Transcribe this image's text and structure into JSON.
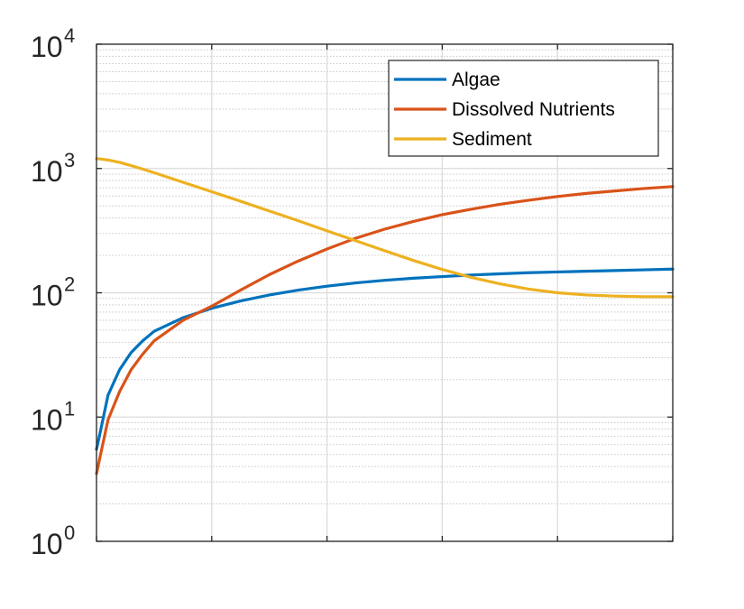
{
  "chart_data": {
    "type": "line",
    "title": "",
    "xlabel": "",
    "ylabel": "",
    "yscale": "log",
    "xlim": [
      0,
      10
    ],
    "ylim": [
      1,
      10000
    ],
    "x_ticks": [
      0,
      2,
      4,
      6,
      8,
      10
    ],
    "y_ticks": [
      {
        "base": "10",
        "exp": "0"
      },
      {
        "base": "10",
        "exp": "1"
      },
      {
        "base": "10",
        "exp": "2"
      },
      {
        "base": "10",
        "exp": "3"
      },
      {
        "base": "10",
        "exp": "4"
      }
    ],
    "grid": true,
    "minor_grid": true,
    "legend_position": "top-right",
    "x": [
      0,
      0.05,
      0.2,
      0.4,
      0.6,
      0.8,
      1,
      1.5,
      2,
      2.5,
      3,
      3.5,
      4,
      4.5,
      5,
      5.5,
      6,
      6.5,
      7,
      7.5,
      8,
      8.5,
      9,
      9.5,
      10
    ],
    "series": [
      {
        "name": "Algae",
        "color": "#0072BD",
        "values": [
          5.5,
          7,
          15,
          24,
          33,
          41,
          49,
          63,
          75,
          86,
          96,
          105,
          113,
          120,
          126,
          131,
          135,
          139,
          142,
          145,
          147,
          149,
          151,
          153,
          155
        ]
      },
      {
        "name": "Dissolved Nutrients",
        "color": "#D95319",
        "values": [
          3.5,
          4.5,
          9.5,
          16,
          24,
          32,
          41,
          60,
          78,
          105,
          140,
          180,
          225,
          275,
          325,
          375,
          425,
          470,
          515,
          555,
          595,
          630,
          660,
          690,
          715
        ]
      },
      {
        "name": "Sediment",
        "color": "#EDB120",
        "values": [
          1200,
          1195,
          1170,
          1120,
          1055,
          990,
          925,
          775,
          650,
          545,
          455,
          380,
          315,
          262,
          218,
          182,
          154,
          133,
          118,
          107,
          100,
          96,
          94,
          93,
          93
        ]
      }
    ]
  }
}
